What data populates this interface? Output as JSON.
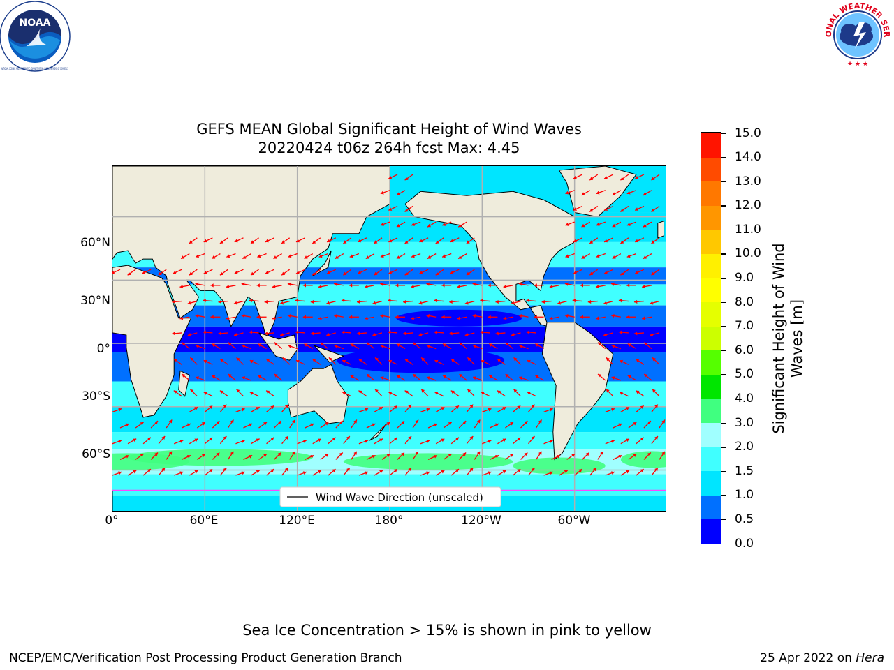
{
  "header": {
    "noaa_logo": "noaa-logo",
    "noaa_logo_text": "NOAA",
    "noaa_ring_text": "NATIONAL OCEANIC AND ATMOSPHERIC ADMINISTRATION · U.S. DEPARTMENT OF COMMERCE",
    "nws_logo": "nws-logo",
    "nws_ring_text": "NATIONAL WEATHER SERVICE"
  },
  "chart_data": {
    "type": "heatmap",
    "title": "GEFS MEAN Global Significant Height of Wind Waves",
    "subtitle": "20220424 t06z 264h fcst   Max: 4.45",
    "x_tick_labels": [
      "0°",
      "60°E",
      "120°E",
      "180°",
      "120°W",
      "60°W"
    ],
    "y_tick_labels": [
      "60°N",
      "30°N",
      "0°",
      "30°S",
      "60°S"
    ],
    "legend_label": "Wind Wave Direction (unscaled)",
    "colorbar_label": "Significant Height of Wind Waves [m]",
    "colorbar_levels": [
      0.0,
      0.5,
      1.0,
      1.5,
      2.0,
      3.0,
      4.0,
      5.0,
      6.0,
      7.0,
      8.0,
      9.0,
      10.0,
      11.0,
      12.0,
      13.0,
      14.0,
      15.0
    ],
    "colorbar_tick_labels": [
      "0.0",
      "0.5",
      "1.0",
      "1.5",
      "2.0",
      "3.0",
      "4.0",
      "5.0",
      "6.0",
      "7.0",
      "8.0",
      "9.0",
      "10.0",
      "11.0",
      "12.0",
      "13.0",
      "14.0",
      "15.0"
    ],
    "colorbar_colors": [
      "#0000ff",
      "#0070ff",
      "#00e5ff",
      "#40ffff",
      "#a0ffff",
      "#40ff80",
      "#00e600",
      "#55ff00",
      "#ccff00",
      "#e5ff00",
      "#ffff00",
      "#fff000",
      "#ffc800",
      "#ff9600",
      "#ff7800",
      "#ff4b00",
      "#ff1400"
    ],
    "max_value": 4.45,
    "grid": true,
    "ocean_colors": {
      "land": "#efecdc",
      "ice_edge": "#ff44ff",
      "arrow": "#ff0000"
    }
  },
  "footer": {
    "note": "Sea Ice Concentration > 15% is shown in pink to yellow",
    "left": "NCEP/EMC/Verification Post Processing Product Generation Branch",
    "right_date": "25 Apr 2022 on ",
    "right_system": "Hera"
  }
}
